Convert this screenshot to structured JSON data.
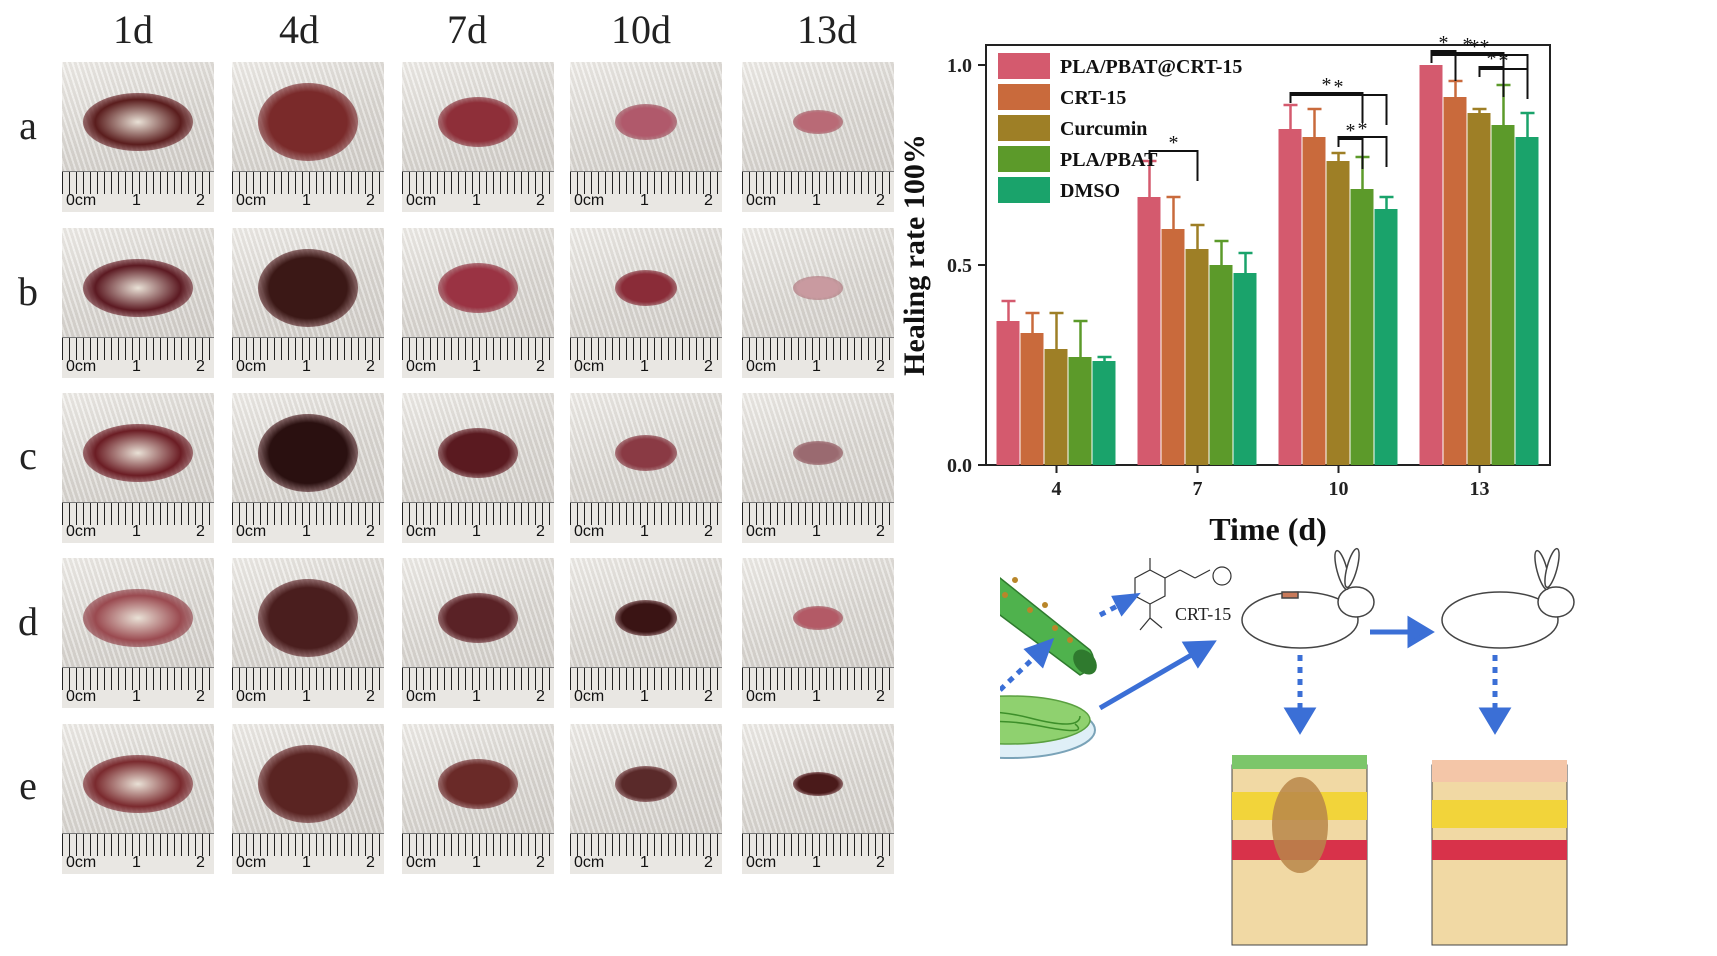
{
  "photo_grid": {
    "columns": [
      "1d",
      "4d",
      "7d",
      "10d",
      "13d"
    ],
    "rows": [
      "a",
      "b",
      "c",
      "d",
      "e"
    ],
    "ruler_unit": "cm",
    "ruler_zero": "0",
    "ruler_marks": [
      "1",
      "2"
    ]
  },
  "colors": {
    "PLA/PBAT@CRT-15": "#d45a6e",
    "CRT-15": "#c96a3c",
    "Curcumin": "#9e7f26",
    "PLA/PBAT": "#5c9a2a",
    "DMSO": "#1aa36b",
    "arrow": "#3b6fd6"
  },
  "chart_data": {
    "type": "bar",
    "xlabel": "Time (d)",
    "ylabel": "Healing rate 100%",
    "categories": [
      "4",
      "7",
      "10",
      "13"
    ],
    "ylim": [
      0.0,
      1.0
    ],
    "yticks": [
      "0.0",
      "0.5",
      "1.0"
    ],
    "legend_position": "top-left",
    "series": [
      {
        "name": "PLA/PBAT@CRT-15",
        "values": [
          0.36,
          0.67,
          0.84,
          1.0
        ],
        "errors": [
          0.05,
          0.09,
          0.06,
          0.0
        ]
      },
      {
        "name": "CRT-15",
        "values": [
          0.33,
          0.59,
          0.82,
          0.92
        ],
        "errors": [
          0.05,
          0.08,
          0.07,
          0.04
        ]
      },
      {
        "name": "Curcumin",
        "values": [
          0.29,
          0.54,
          0.76,
          0.88
        ],
        "errors": [
          0.09,
          0.06,
          0.02,
          0.01
        ]
      },
      {
        "name": "PLA/PBAT",
        "values": [
          0.27,
          0.5,
          0.69,
          0.85
        ],
        "errors": [
          0.09,
          0.06,
          0.08,
          0.1
        ]
      },
      {
        "name": "DMSO",
        "values": [
          0.26,
          0.48,
          0.64,
          0.82
        ],
        "errors": [
          0.01,
          0.05,
          0.03,
          0.06
        ]
      }
    ],
    "significance": [
      {
        "day": "7",
        "from": 0,
        "to": 2,
        "label": "*"
      },
      {
        "day": "10",
        "from": 0,
        "to": 4,
        "label": "*"
      },
      {
        "day": "10",
        "from": 0,
        "to": 3,
        "label": "*"
      },
      {
        "day": "10",
        "from": 2,
        "to": 3,
        "label": "*"
      },
      {
        "day": "10",
        "from": 2,
        "to": 4,
        "label": "*"
      },
      {
        "day": "13",
        "from": 0,
        "to": 4,
        "label": "**"
      },
      {
        "day": "13",
        "from": 0,
        "to": 3,
        "label": "*"
      },
      {
        "day": "13",
        "from": 0,
        "to": 1,
        "label": "*"
      },
      {
        "day": "13",
        "from": 2,
        "to": 4,
        "label": "*"
      },
      {
        "day": "13",
        "from": 2,
        "to": 3,
        "label": "*"
      }
    ]
  },
  "schematic": {
    "molecule_label": "CRT-15"
  }
}
